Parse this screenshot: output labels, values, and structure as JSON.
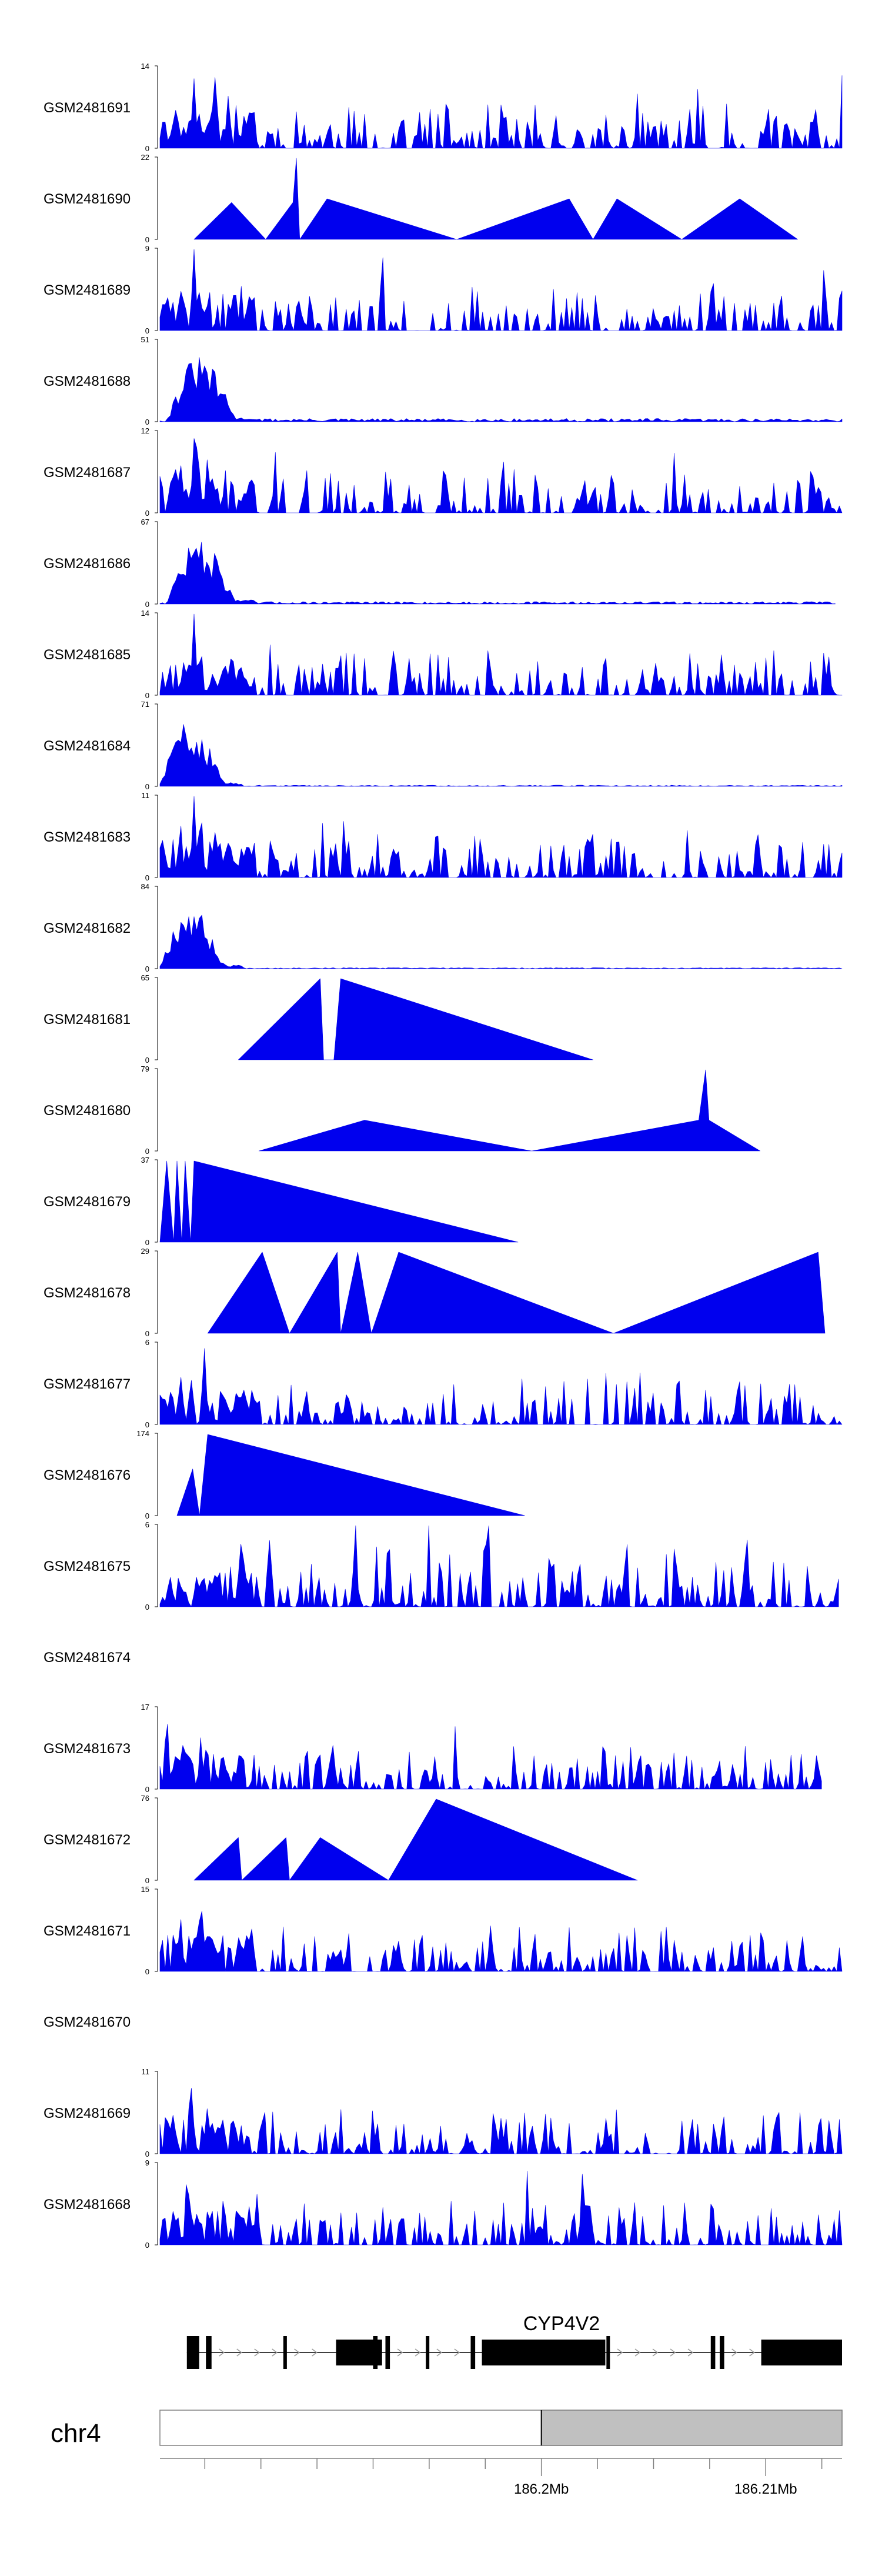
{
  "chart_data": {
    "type": "area",
    "title": "",
    "chromosome": "chr4",
    "gene": "CYP4V2",
    "xlabel": "",
    "ylabel": "",
    "xlim": [
      186183000,
      186213400
    ],
    "axis_ticks": [
      {
        "pos": 186185000,
        "label": ""
      },
      {
        "pos": 186187500,
        "label": ""
      },
      {
        "pos": 186190000,
        "label": ""
      },
      {
        "pos": 186192500,
        "label": ""
      },
      {
        "pos": 186195000,
        "label": ""
      },
      {
        "pos": 186197500,
        "label": ""
      },
      {
        "pos": 186200000,
        "label": "186.2Mb"
      },
      {
        "pos": 186202500,
        "label": ""
      },
      {
        "pos": 186205000,
        "label": ""
      },
      {
        "pos": 186207500,
        "label": ""
      },
      {
        "pos": 186210000,
        "label": "186.21Mb"
      },
      {
        "pos": 186212500,
        "label": ""
      }
    ],
    "highlight_region": [
      186200000,
      186213400
    ],
    "exons": [
      [
        186184200,
        186184750
      ],
      [
        186185050,
        186185300
      ],
      [
        186188500,
        186188650
      ],
      [
        186190850,
        186192900
      ],
      [
        186192500,
        186192700
      ],
      [
        186193050,
        186193250
      ],
      [
        186194850,
        186195000
      ],
      [
        186196850,
        186197050
      ],
      [
        186197350,
        186202850
      ],
      [
        186202900,
        186203050
      ],
      [
        186207550,
        186207750
      ],
      [
        186207950,
        186208150
      ],
      [
        186209800,
        186213400
      ]
    ],
    "tracks": [
      {
        "name": "GSM2481691",
        "ymax": 14,
        "type": "noisy",
        "seed": 11,
        "start": 0.0,
        "end": 1.0,
        "peaks": [
          [
            0.022,
            8
          ],
          [
            0.05,
            12
          ],
          [
            0.08,
            14
          ],
          [
            0.1,
            9
          ],
          [
            0.13,
            7
          ]
        ],
        "base": 3.5
      },
      {
        "name": "GSM2481690",
        "ymax": 22,
        "type": "tri",
        "points": [
          [
            0.05,
            0
          ],
          [
            0.105,
            10
          ],
          [
            0.155,
            0
          ],
          [
            0.195,
            10
          ],
          [
            0.2,
            22
          ],
          [
            0.205,
            0
          ],
          [
            0.245,
            11
          ],
          [
            0.435,
            0
          ],
          [
            0.6,
            11
          ],
          [
            0.635,
            0
          ],
          [
            0.67,
            11
          ],
          [
            0.765,
            0
          ],
          [
            0.85,
            11
          ],
          [
            0.935,
            0
          ]
        ]
      },
      {
        "name": "GSM2481689",
        "ymax": 9,
        "type": "noisy",
        "seed": 23,
        "start": 0.0,
        "end": 1.0,
        "peaks": [
          [
            0.05,
            9
          ],
          [
            0.81,
            7
          ],
          [
            0.03,
            5
          ]
        ],
        "base": 3.2
      },
      {
        "name": "GSM2481688",
        "ymax": 51,
        "type": "decay",
        "seed": 31,
        "start": 0.0,
        "end": 1.0,
        "peakStart": 0.01,
        "peakEnd": 0.14,
        "peakMax": 51,
        "tail": 2
      },
      {
        "name": "GSM2481687",
        "ymax": 12,
        "type": "noisy",
        "seed": 41,
        "start": 0.0,
        "end": 1.0,
        "peaks": [
          [
            0.05,
            11
          ],
          [
            0.055,
            12
          ],
          [
            0.03,
            8
          ],
          [
            0.07,
            9
          ]
        ],
        "base": 3.2
      },
      {
        "name": "GSM2481686",
        "ymax": 67,
        "type": "decay",
        "seed": 47,
        "start": 0.0,
        "end": 0.99,
        "peakStart": 0.01,
        "peakEnd": 0.14,
        "peakMax": 67,
        "tail": 2
      },
      {
        "name": "GSM2481685",
        "ymax": 14,
        "type": "noisy",
        "seed": 53,
        "start": 0.0,
        "end": 1.0,
        "peaks": [
          [
            0.05,
            14
          ],
          [
            0.06,
            9
          ],
          [
            0.035,
            6
          ]
        ],
        "base": 3.0
      },
      {
        "name": "GSM2481684",
        "ymax": 71,
        "type": "decay",
        "seed": 59,
        "start": 0.0,
        "end": 1.0,
        "peakStart": 0.0,
        "peakEnd": 0.12,
        "peakMax": 71,
        "tail": 1
      },
      {
        "name": "GSM2481683",
        "ymax": 11,
        "type": "noisy",
        "seed": 61,
        "start": 0.0,
        "end": 1.0,
        "peaks": [
          [
            0.05,
            11
          ],
          [
            0.06,
            10
          ],
          [
            0.03,
            8
          ],
          [
            0.08,
            7
          ]
        ],
        "base": 2.8
      },
      {
        "name": "GSM2481682",
        "ymax": 84,
        "type": "decay",
        "seed": 67,
        "start": 0.0,
        "end": 1.0,
        "peakStart": 0.0,
        "peakEnd": 0.12,
        "peakMax": 84,
        "tail": 1
      },
      {
        "name": "GSM2481681",
        "ymax": 65,
        "type": "tri",
        "points": [
          [
            0.115,
            0
          ],
          [
            0.235,
            65
          ],
          [
            0.24,
            0
          ],
          [
            0.255,
            0
          ],
          [
            0.265,
            65
          ],
          [
            0.635,
            0
          ]
        ]
      },
      {
        "name": "GSM2481680",
        "ymax": 79,
        "type": "tri",
        "points": [
          [
            0.145,
            0
          ],
          [
            0.3,
            30
          ],
          [
            0.545,
            0
          ],
          [
            0.79,
            30
          ],
          [
            0.8,
            79
          ],
          [
            0.805,
            30
          ],
          [
            0.88,
            0
          ]
        ]
      },
      {
        "name": "GSM2481679",
        "ymax": 37,
        "type": "tri",
        "points": [
          [
            0.0,
            0
          ],
          [
            0.01,
            37
          ],
          [
            0.02,
            0
          ],
          [
            0.025,
            37
          ],
          [
            0.032,
            0
          ],
          [
            0.037,
            37
          ],
          [
            0.045,
            0
          ],
          [
            0.05,
            37
          ],
          [
            0.525,
            0
          ]
        ]
      },
      {
        "name": "GSM2481678",
        "ymax": 29,
        "type": "tri",
        "points": [
          [
            0.07,
            0
          ],
          [
            0.15,
            29
          ],
          [
            0.19,
            0
          ],
          [
            0.26,
            29
          ],
          [
            0.265,
            0
          ],
          [
            0.29,
            29
          ],
          [
            0.31,
            0
          ],
          [
            0.35,
            29
          ],
          [
            0.665,
            0
          ],
          [
            0.965,
            29
          ],
          [
            0.975,
            0
          ]
        ]
      },
      {
        "name": "GSM2481677",
        "ymax": 6,
        "type": "noisy",
        "seed": 83,
        "start": 0.0,
        "end": 1.0,
        "peaks": [
          [
            0.065,
            6
          ],
          [
            0.03,
            4
          ]
        ],
        "base": 3.0
      },
      {
        "name": "GSM2481676",
        "ymax": 174,
        "type": "tri",
        "points": [
          [
            0.025,
            0
          ],
          [
            0.048,
            100
          ],
          [
            0.058,
            0
          ],
          [
            0.07,
            174
          ],
          [
            0.535,
            0
          ]
        ]
      },
      {
        "name": "GSM2481675",
        "ymax": 6,
        "type": "noisy",
        "seed": 97,
        "start": 0.0,
        "end": 0.995,
        "peaks": [
          [
            0.12,
            6
          ],
          [
            0.335,
            6
          ],
          [
            0.86,
            6
          ]
        ],
        "base": 3.2
      },
      {
        "name": "GSM2481674",
        "ymax": null,
        "type": "empty"
      },
      {
        "name": "GSM2481673",
        "ymax": 17,
        "type": "noisy",
        "seed": 103,
        "start": 0.0,
        "end": 0.97,
        "peaks": [
          [
            0.01,
            17
          ],
          [
            0.035,
            12
          ],
          [
            0.06,
            9
          ]
        ],
        "base": 3.0
      },
      {
        "name": "GSM2481672",
        "ymax": 76,
        "type": "tri",
        "points": [
          [
            0.05,
            0
          ],
          [
            0.115,
            40
          ],
          [
            0.12,
            0
          ],
          [
            0.185,
            40
          ],
          [
            0.19,
            0
          ],
          [
            0.235,
            40
          ],
          [
            0.335,
            0
          ],
          [
            0.405,
            76
          ],
          [
            0.7,
            0
          ]
        ]
      },
      {
        "name": "GSM2481671",
        "ymax": 15,
        "type": "noisy",
        "seed": 113,
        "start": 0.0,
        "end": 1.0,
        "peaks": [
          [
            0.06,
            15
          ],
          [
            0.03,
            11
          ],
          [
            0.485,
            9
          ]
        ],
        "base": 3.2
      },
      {
        "name": "GSM2481670",
        "ymax": null,
        "type": "empty"
      },
      {
        "name": "GSM2481669",
        "ymax": 11,
        "type": "noisy",
        "seed": 127,
        "start": 0.0,
        "end": 1.0,
        "peaks": [
          [
            0.045,
            11
          ],
          [
            0.07,
            7
          ],
          [
            0.02,
            6
          ]
        ],
        "base": 2.0
      },
      {
        "name": "GSM2481668",
        "ymax": 9,
        "type": "noisy",
        "seed": 131,
        "start": 0.0,
        "end": 1.0,
        "peaks": [
          [
            0.04,
            9
          ],
          [
            0.62,
            9
          ]
        ],
        "base": 3.4
      }
    ]
  },
  "colors": {
    "signal": "#0000ee",
    "axis": "#000000",
    "highlight": "#c0c0c0",
    "box_stroke": "#808080",
    "gene": "#000000",
    "intron_arrow": "#9a9a9a"
  }
}
